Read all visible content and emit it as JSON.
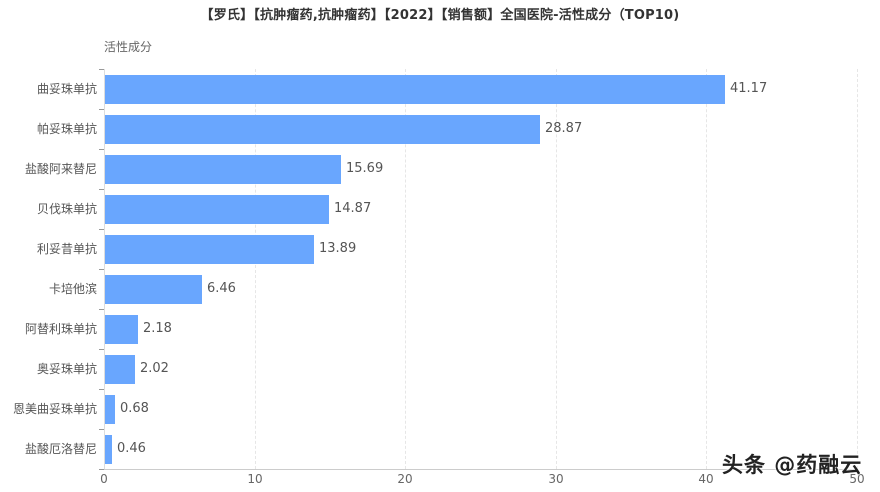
{
  "title": "【罗氏】【抗肿瘤药,抗肿瘤药】【2022】【销售额】全国医院-活性成分（TOP10)",
  "y_axis_label": "活性成分",
  "watermark": "头条 @药融云",
  "colors": {
    "bar": "#69a6fe",
    "text": "#555555",
    "grid": "#e6e6e6"
  },
  "x_ticks": [
    "0",
    "10",
    "20",
    "30",
    "40",
    "50"
  ],
  "chart_data": {
    "type": "bar",
    "orientation": "horizontal",
    "title": "【罗氏】【抗肿瘤药,抗肿瘤药】【2022】【销售额】全国医院-活性成分（TOP10)",
    "xlabel": "",
    "ylabel": "活性成分",
    "xlim": [
      0,
      50
    ],
    "x_ticks": [
      0,
      10,
      20,
      30,
      40,
      50
    ],
    "grid": true,
    "legend": null,
    "categories": [
      "曲妥珠单抗",
      "帕妥珠单抗",
      "盐酸阿来替尼",
      "贝伐珠单抗",
      "利妥昔单抗",
      "卡培他滨",
      "阿替利珠单抗",
      "奥妥珠单抗",
      "恩美曲妥珠单抗",
      "盐酸厄洛替尼"
    ],
    "values": [
      41.17,
      28.87,
      15.69,
      14.87,
      13.89,
      6.46,
      2.18,
      2.02,
      0.68,
      0.46
    ],
    "value_labels": [
      "41.17",
      "28.87",
      "15.69",
      "14.87",
      "13.89",
      "6.46",
      "2.18",
      "2.02",
      "0.68",
      "0.46"
    ]
  }
}
